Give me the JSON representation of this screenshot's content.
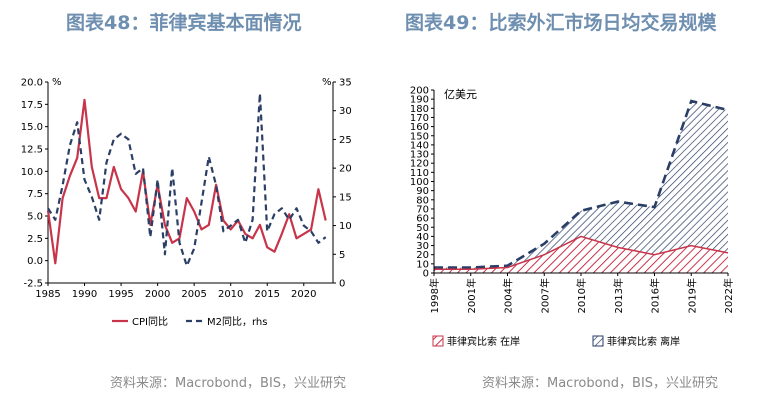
{
  "left_title": "图表48：菲律宾基本面情况",
  "right_title": "图表49：比索外汇市场日均交易规模",
  "left_source": "资料来源：Macrobond，BIS，兴业研究",
  "right_source": "资料来源：Macrobond，BIS，兴业研究",
  "colors": {
    "title": "#6f8fb0",
    "cpi": "#c8344a",
    "m2": "#2b3e66",
    "onshore": "#c8344a",
    "offshore": "#2b3e66"
  },
  "chart_data": [
    {
      "type": "line",
      "left_unit": "%",
      "right_unit": "%",
      "ylim_left": [
        -2.5,
        20.0
      ],
      "ylim_right": [
        0,
        35
      ],
      "yticks_left": [
        "-2.5",
        "0.0",
        "2.5",
        "5.0",
        "7.5",
        "10.0",
        "12.5",
        "15.0",
        "17.5",
        "20.0"
      ],
      "yticks_right": [
        "0",
        "5",
        "10",
        "15",
        "20",
        "25",
        "30",
        "35"
      ],
      "xlim": [
        1985,
        2024
      ],
      "xticks": [
        "1985",
        "1990",
        "1995",
        "2000",
        "2005",
        "2010",
        "2015",
        "2020"
      ],
      "series": [
        {
          "name": "CPI同比",
          "axis": "left",
          "style": "solid",
          "x": [
            1985,
            1986,
            1987,
            1988,
            1989,
            1990,
            1991,
            1992,
            1993,
            1994,
            1995,
            1996,
            1997,
            1998,
            1999,
            2000,
            2001,
            2002,
            2003,
            2004,
            2005,
            2006,
            2007,
            2008,
            2009,
            2010,
            2011,
            2012,
            2013,
            2014,
            2015,
            2016,
            2017,
            2018,
            2019,
            2020,
            2021,
            2022,
            2023
          ],
          "values": [
            5.6,
            -0.3,
            7.0,
            9.5,
            11.5,
            18.0,
            10.5,
            7.0,
            7.0,
            10.5,
            8.0,
            7.0,
            5.5,
            10.0,
            4.0,
            8.5,
            4.0,
            2.0,
            2.5,
            7.0,
            5.5,
            3.5,
            4.0,
            8.5,
            4.5,
            3.5,
            4.5,
            3.0,
            2.5,
            4.0,
            1.5,
            1.0,
            3.0,
            5.2,
            2.5,
            3.0,
            3.5,
            8.0,
            4.5
          ]
        },
        {
          "name": "M2同比，rhs",
          "axis": "right",
          "style": "dashed",
          "x": [
            1985,
            1986,
            1987,
            1988,
            1989,
            1990,
            1991,
            1992,
            1993,
            1994,
            1995,
            1996,
            1997,
            1998,
            1999,
            2000,
            2001,
            2002,
            2003,
            2004,
            2005,
            2006,
            2007,
            2008,
            2009,
            2010,
            2011,
            2012,
            2013,
            2014,
            2015,
            2016,
            2017,
            2018,
            2019,
            2020,
            2021,
            2022,
            2023
          ],
          "values": [
            13,
            11,
            17,
            24,
            28,
            18,
            15,
            11,
            21,
            25,
            26,
            25,
            19,
            20,
            8,
            18,
            5,
            20,
            7,
            3,
            6,
            14,
            22,
            17,
            9,
            10,
            11,
            7,
            11,
            33,
            9,
            12,
            13,
            11,
            13,
            10,
            9,
            7,
            8
          ]
        }
      ]
    },
    {
      "type": "area",
      "stacked": true,
      "unit": "亿美元",
      "ylim": [
        0,
        200
      ],
      "yticks": [
        "0",
        "10",
        "20",
        "30",
        "40",
        "50",
        "60",
        "70",
        "80",
        "90",
        "100",
        "110",
        "120",
        "130",
        "140",
        "150",
        "160",
        "170",
        "180",
        "190",
        "200"
      ],
      "x": [
        1998,
        2001,
        2004,
        2007,
        2010,
        2013,
        2016,
        2019,
        2022
      ],
      "xticks": [
        "1998年",
        "2001年",
        "2004年",
        "2007年",
        "2010年",
        "2013年",
        "2016年",
        "2019年",
        "2022年"
      ],
      "series": [
        {
          "name": "菲律宾比索 在岸",
          "values": [
            4,
            4,
            6,
            20,
            40,
            28,
            20,
            30,
            22
          ]
        },
        {
          "name": "菲律宾比索 离岸",
          "values": [
            2,
            2,
            2,
            12,
            28,
            50,
            52,
            158,
            156
          ]
        }
      ]
    }
  ]
}
